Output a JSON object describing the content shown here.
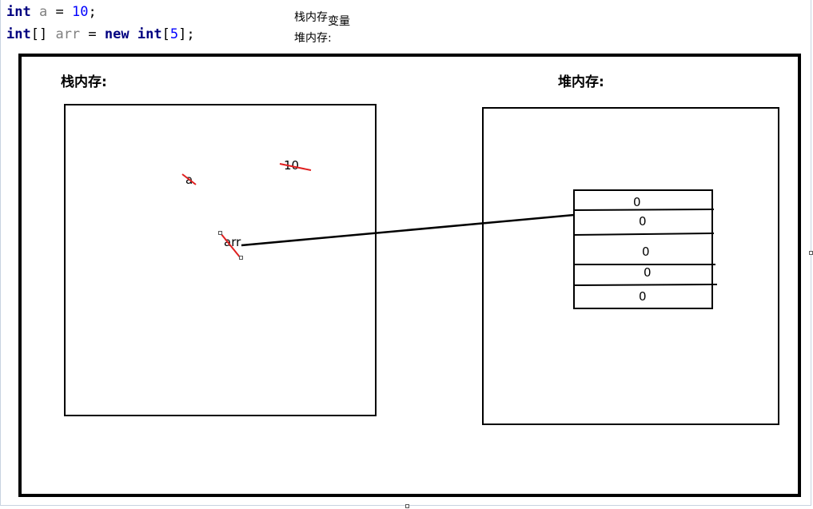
{
  "code": {
    "line1": {
      "type": "int",
      "name": "a",
      "op": "=",
      "value": "10",
      "end": ";"
    },
    "line2": {
      "type": "int",
      "brackets": "[]",
      "name": "arr",
      "op": "=",
      "new_kw": "new",
      "type2": "int",
      "open": "[",
      "size": "5",
      "close": "];"
    }
  },
  "notes": {
    "stack_label": "栈内存",
    "stack_suffix": "变量",
    "heap_label": "堆内存:"
  },
  "diagram": {
    "stack_heading": "栈内存:",
    "heap_heading": "堆内存:",
    "stack_vars": {
      "a_name": "a",
      "a_value": "10",
      "arr_name": "arr"
    },
    "array_cells": [
      "0",
      "0",
      "0",
      "0",
      "0"
    ]
  },
  "colors": {
    "keyword": "#000080",
    "variable": "#808080",
    "number": "#0000ff",
    "annotation": "#e02020"
  }
}
